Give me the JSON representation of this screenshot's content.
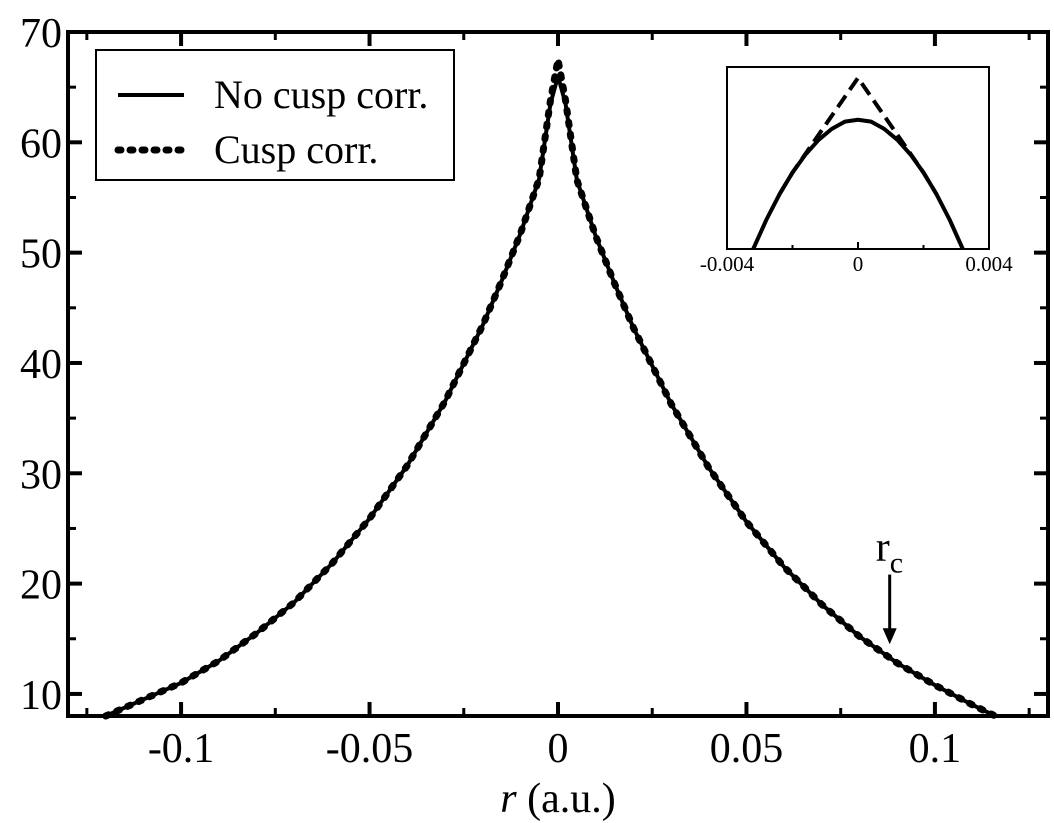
{
  "chart_data": [
    {
      "type": "line",
      "title": "",
      "xlabel_var": "r",
      "xlabel_unit": " (a.u.)",
      "ylabel": "",
      "xlim": [
        -0.13,
        0.13
      ],
      "ylim": [
        8,
        70
      ],
      "xticks": [
        -0.1,
        -0.05,
        0,
        0.05,
        0.1
      ],
      "xtick_labels": [
        "-0.1",
        "-0.05",
        "0",
        "0.05",
        "0.1"
      ],
      "yticks": [
        10,
        20,
        30,
        40,
        50,
        60,
        70
      ],
      "ytick_labels": [
        "10",
        "20",
        "30",
        "40",
        "50",
        "60",
        "70"
      ],
      "grid": false,
      "legend_position": "top-left",
      "series": [
        {
          "name": "No cusp corr.",
          "style": "solid",
          "x": [
            -0.12,
            -0.11,
            -0.1,
            -0.09,
            -0.08,
            -0.07,
            -0.06,
            -0.05,
            -0.04,
            -0.03,
            -0.02,
            -0.015,
            -0.01,
            -0.005,
            -0.002,
            0,
            0.002,
            0.005,
            0.01,
            0.015,
            0.02,
            0.03,
            0.04,
            0.05,
            0.06,
            0.07,
            0.08,
            0.09,
            0.1,
            0.11,
            0.116
          ],
          "y": [
            8,
            9.5,
            11,
            13,
            15.5,
            18.3,
            21.8,
            25.9,
            30.7,
            36.5,
            43.4,
            47.4,
            51.7,
            56.7,
            63.5,
            66,
            63.5,
            56.6,
            51.5,
            47.2,
            43.2,
            36.3,
            30.5,
            25.6,
            21.5,
            18.1,
            15.2,
            12.8,
            10.8,
            9.0,
            8
          ]
        },
        {
          "name": "Cusp corr.",
          "style": "dotted",
          "x": [
            -0.12,
            -0.11,
            -0.1,
            -0.09,
            -0.08,
            -0.07,
            -0.06,
            -0.05,
            -0.04,
            -0.03,
            -0.02,
            -0.015,
            -0.01,
            -0.005,
            -0.002,
            0,
            0.002,
            0.005,
            0.01,
            0.015,
            0.02,
            0.03,
            0.04,
            0.05,
            0.06,
            0.07,
            0.08,
            0.09,
            0.1,
            0.11,
            0.116
          ],
          "y": [
            8,
            9.5,
            11,
            13,
            15.5,
            18.3,
            21.8,
            25.9,
            30.7,
            36.5,
            43.4,
            47.4,
            51.7,
            56.7,
            63.8,
            67.5,
            63.8,
            56.6,
            51.5,
            47.2,
            43.2,
            36.3,
            30.5,
            25.6,
            21.5,
            18.1,
            15.2,
            12.8,
            10.8,
            9.0,
            8
          ]
        }
      ],
      "annotations": [
        {
          "label_main": "r",
          "label_sub": "c",
          "x": 0.088,
          "arrow_from_y": 21,
          "arrow_to_y": 14.5
        }
      ]
    },
    {
      "type": "line",
      "role": "inset",
      "xlim": [
        -0.004,
        0.004
      ],
      "ylim": [
        0,
        1
      ],
      "xticks": [
        -0.004,
        0,
        0.004
      ],
      "xtick_labels": [
        "-0.004",
        "0",
        "0.004"
      ],
      "series": [
        {
          "name": "No cusp corr.",
          "style": "solid",
          "x": [
            -0.0032,
            -0.0028,
            -0.0024,
            -0.002,
            -0.0016,
            -0.0012,
            -0.0008,
            -0.0004,
            0,
            0.0004,
            0.0008,
            0.0012,
            0.0016,
            0.002,
            0.0024,
            0.0028,
            0.0032
          ],
          "y": [
            0,
            0.16,
            0.3,
            0.42,
            0.52,
            0.6,
            0.66,
            0.7,
            0.71,
            0.7,
            0.66,
            0.6,
            0.52,
            0.42,
            0.3,
            0.16,
            0
          ]
        },
        {
          "name": "Cusp corr.",
          "style": "dashed",
          "x": [
            -0.0024,
            -0.002,
            -0.0015,
            -0.001,
            -0.0005,
            0,
            0.0005,
            0.001,
            0.0015,
            0.002,
            0.0024
          ],
          "y": [
            0.3,
            0.42,
            0.55,
            0.68,
            0.81,
            0.94,
            0.81,
            0.68,
            0.55,
            0.42,
            0.3
          ]
        }
      ]
    }
  ]
}
